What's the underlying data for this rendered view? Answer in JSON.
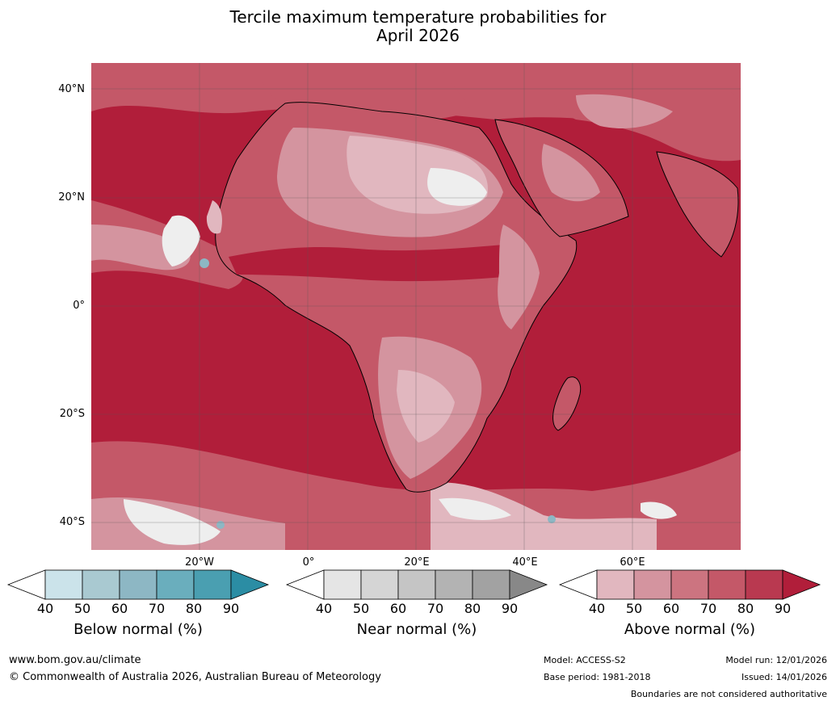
{
  "title_line1": "Tercile maximum temperature probabilities for",
  "title_line2": "April 2026",
  "lat_labels": [
    "40°N",
    "20°N",
    "0°",
    "20°S",
    "40°S"
  ],
  "lon_labels": [
    "20°W",
    "0°",
    "20°E",
    "40°E",
    "60°E"
  ],
  "legends": [
    {
      "caption": "Below normal (%)",
      "ticks": [
        "40",
        "50",
        "60",
        "70",
        "80",
        "90"
      ],
      "colors": [
        "#ffffff",
        "#cbe3ea",
        "#a9c9d1",
        "#8db7c4",
        "#6aaebd",
        "#4a9fb1",
        "#2b8da4"
      ]
    },
    {
      "caption": "Near normal (%)",
      "ticks": [
        "40",
        "50",
        "60",
        "70",
        "80",
        "90"
      ],
      "colors": [
        "#ffffff",
        "#e5e5e5",
        "#d5d5d5",
        "#c5c5c5",
        "#b3b3b3",
        "#a2a2a2",
        "#888888"
      ]
    },
    {
      "caption": "Above normal (%)",
      "ticks": [
        "40",
        "50",
        "60",
        "70",
        "80",
        "90"
      ],
      "colors": [
        "#ffffff",
        "#e1b7bf",
        "#d4949f",
        "#cc7480",
        "#c45868",
        "#b93950",
        "#b11e3a"
      ]
    }
  ],
  "footer": {
    "url": "www.bom.gov.au/climate",
    "copyright": "© Commonwealth of Australia 2026, Australian Bureau of Meteorology",
    "model": "Model: ACCESS-S2",
    "base_period": "Base period: 1981-2018",
    "model_run": "Model run: 12/01/2026",
    "issued": "Issued: 14/01/2026",
    "disclaimer": "Boundaries are not considered authoritative"
  },
  "map_colors": {
    "ocean_dominant": "#b11e3a",
    "land_moderate": "#c45868",
    "land_low": "#d4949f",
    "land_lower": "#e1b7bf",
    "near_white": "#eeeeee",
    "below_normal": "#8db7c4"
  }
}
